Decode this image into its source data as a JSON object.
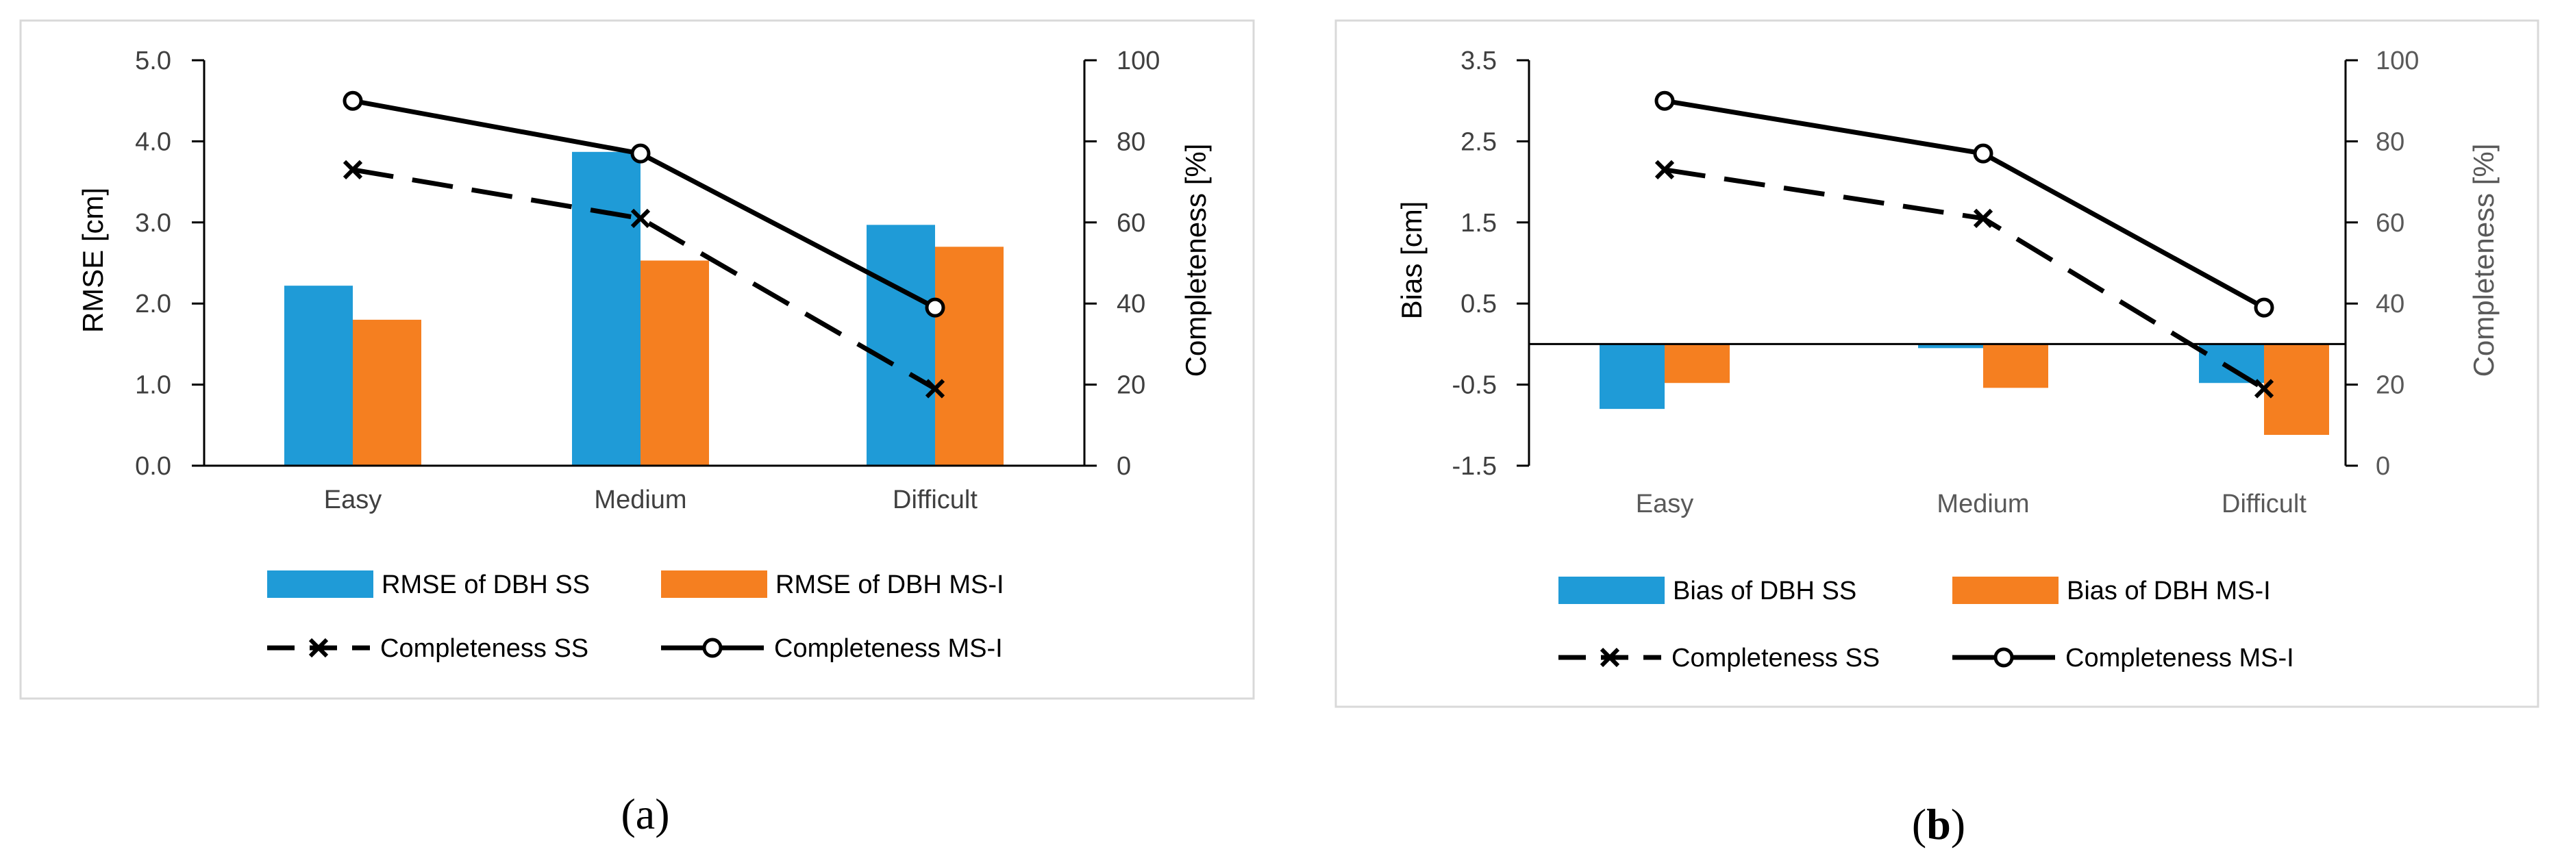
{
  "colors": {
    "ss_bar": "#1f9bd7",
    "msi_bar": "#f57f20",
    "line": "#000000"
  },
  "chart_data": [
    {
      "panel": "a",
      "type": "bar",
      "caption_left": "(",
      "caption_letter": "a",
      "caption_right": ")",
      "categories": [
        "Easy",
        "Medium",
        "Difficult"
      ],
      "ylabel": "RMSE [cm]",
      "y2label": "Completeness [%]",
      "ylim": [
        0,
        5
      ],
      "yticks": [
        "0.0",
        "1.0",
        "2.0",
        "3.0",
        "4.0",
        "5.0"
      ],
      "y2lim": [
        0,
        100
      ],
      "y2ticks": [
        "0",
        "20",
        "40",
        "60",
        "80",
        "100"
      ],
      "bars": [
        {
          "name": "RMSE of DBH SS",
          "values": [
            2.22,
            3.87,
            2.97
          ]
        },
        {
          "name": "RMSE of DBH MS-I",
          "values": [
            1.8,
            2.53,
            2.7
          ]
        }
      ],
      "lines": [
        {
          "name": "Completeness SS",
          "style": "dashed-x",
          "values": [
            73,
            61,
            19
          ]
        },
        {
          "name": "Completeness MS-I",
          "style": "solid-o",
          "values": [
            90,
            77,
            39
          ]
        }
      ]
    },
    {
      "panel": "b",
      "type": "bar",
      "caption_left": "(",
      "caption_letter": "b",
      "caption_right": ")",
      "categories": [
        "Easy",
        "Medium",
        "Difficult"
      ],
      "ylabel": "Bias [cm]",
      "y2label": "Completeness [%]",
      "ylim": [
        -1.5,
        3.5
      ],
      "yticks": [
        "-1.5",
        "-0.5",
        "0.5",
        "1.5",
        "2.5",
        "3.5"
      ],
      "y2lim": [
        0,
        100
      ],
      "y2ticks": [
        "0",
        "20",
        "40",
        "60",
        "80",
        "100"
      ],
      "bars": [
        {
          "name": "Bias of DBH SS",
          "values": [
            -0.8,
            -0.05,
            -0.48
          ]
        },
        {
          "name": "Bias of DBH MS-I",
          "values": [
            -0.48,
            -0.54,
            -1.12
          ]
        }
      ],
      "lines": [
        {
          "name": "Completeness SS",
          "style": "dashed-x",
          "values": [
            73,
            61,
            19
          ]
        },
        {
          "name": "Completeness MS-I",
          "style": "solid-o",
          "values": [
            90,
            77,
            39
          ]
        }
      ]
    }
  ]
}
